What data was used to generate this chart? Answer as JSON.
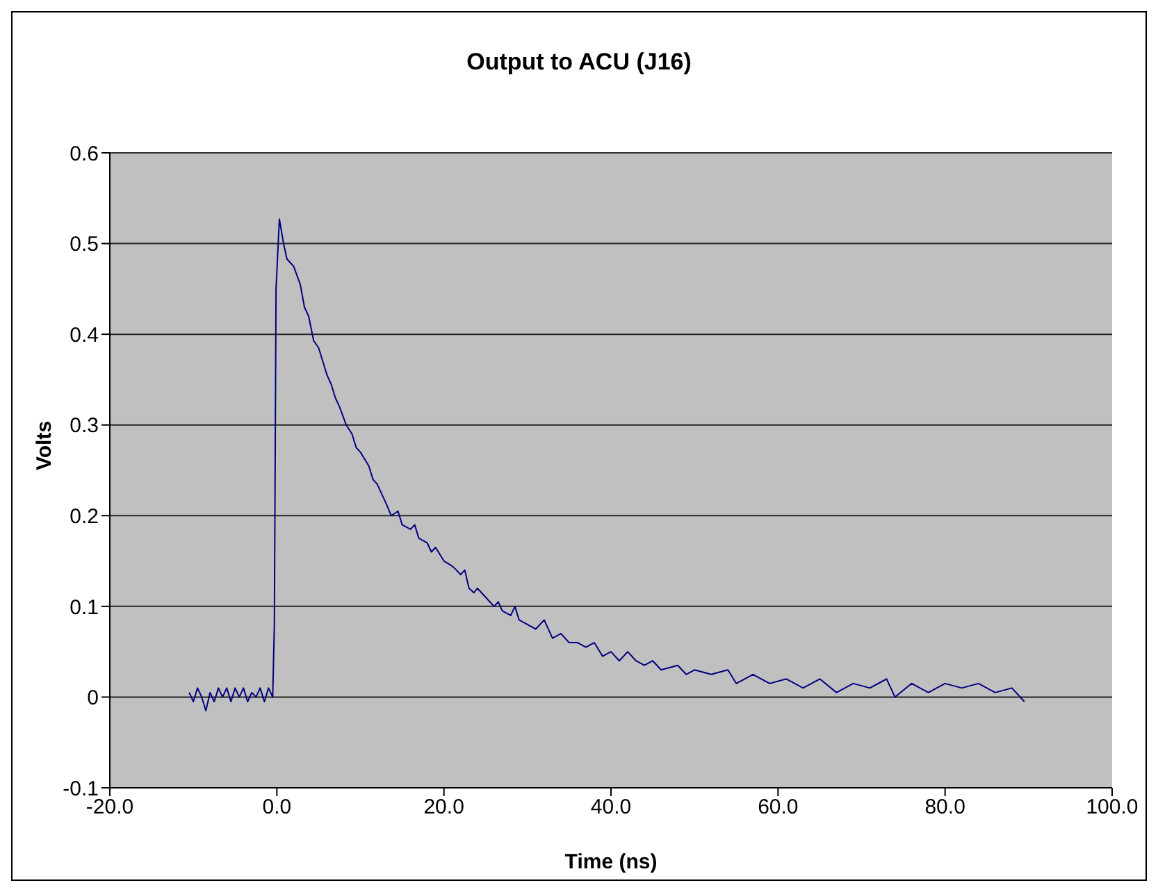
{
  "chart_data": {
    "type": "line",
    "title": "Output to ACU (J16)",
    "xlabel": "Time (ns)",
    "ylabel": "Volts",
    "x": [
      -10.5,
      -10,
      -9.5,
      -9,
      -8.5,
      -8,
      -7.5,
      -7,
      -6.5,
      -6,
      -5.5,
      -5,
      -4.5,
      -4,
      -3.5,
      -3,
      -2.5,
      -2,
      -1.5,
      -1,
      -0.5,
      -0.3,
      -0.1,
      0.3,
      0.8,
      1.2,
      2,
      2.8,
      3.3,
      3.8,
      4.4,
      5,
      5.5,
      6,
      6.5,
      7,
      7.5,
      8.3,
      9,
      9.5,
      10,
      11,
      11.5,
      12,
      13,
      13.7,
      14.5,
      15,
      16,
      16.5,
      17,
      18,
      18.5,
      19,
      20,
      20.9,
      21.5,
      22,
      22.5,
      23,
      23.6,
      24,
      25,
      26,
      26.5,
      27,
      28,
      28.5,
      29,
      30,
      31,
      32,
      33,
      34,
      35,
      36,
      37,
      38,
      39,
      40,
      41,
      42,
      43,
      44,
      45,
      46,
      48,
      49,
      50,
      52,
      54,
      55,
      57,
      59,
      61,
      63,
      65,
      67,
      69,
      71,
      73,
      74,
      76,
      78,
      80,
      82,
      84,
      86,
      88,
      89.5
    ],
    "series": [
      {
        "color": "#000080",
        "values": [
          0.005,
          -0.005,
          0.01,
          0,
          -0.015,
          0.005,
          -0.005,
          0.01,
          0,
          0.01,
          -0.005,
          0.01,
          0,
          0.01,
          -0.005,
          0.005,
          0,
          0.01,
          -0.005,
          0.01,
          0,
          0.08,
          0.45,
          0.527,
          0.5,
          0.483,
          0.475,
          0.455,
          0.43,
          0.42,
          0.393,
          0.385,
          0.37,
          0.355,
          0.345,
          0.33,
          0.32,
          0.3,
          0.29,
          0.275,
          0.27,
          0.255,
          0.24,
          0.235,
          0.215,
          0.2,
          0.205,
          0.19,
          0.185,
          0.19,
          0.175,
          0.17,
          0.16,
          0.165,
          0.15,
          0.145,
          0.14,
          0.135,
          0.14,
          0.12,
          0.115,
          0.12,
          0.11,
          0.1,
          0.105,
          0.095,
          0.09,
          0.1,
          0.085,
          0.08,
          0.075,
          0.085,
          0.065,
          0.07,
          0.06,
          0.06,
          0.055,
          0.06,
          0.045,
          0.05,
          0.04,
          0.05,
          0.04,
          0.035,
          0.04,
          0.03,
          0.035,
          0.025,
          0.03,
          0.025,
          0.03,
          0.015,
          0.025,
          0.015,
          0.02,
          0.01,
          0.02,
          0.005,
          0.015,
          0.01,
          0.02,
          0,
          0.015,
          0.005,
          0.015,
          0.01,
          0.015,
          0.005,
          0.01,
          -0.005
        ]
      }
    ],
    "xlim": [
      -20,
      100
    ],
    "xticks": [
      {
        "value": -20,
        "label": "-20.0"
      },
      {
        "value": 0,
        "label": "0.0"
      },
      {
        "value": 20,
        "label": "20.0"
      },
      {
        "value": 40,
        "label": "40.0"
      },
      {
        "value": 60,
        "label": "60.0"
      },
      {
        "value": 80,
        "label": "80.0"
      },
      {
        "value": 100,
        "label": "100.0"
      }
    ],
    "ylim": [
      -0.1,
      0.6
    ],
    "yticks": [
      -0.1,
      0,
      0.1,
      0.2,
      0.3,
      0.4,
      0.5,
      0.6
    ],
    "grid": "y",
    "legend": false,
    "marker": "none",
    "line_style": "solid"
  }
}
